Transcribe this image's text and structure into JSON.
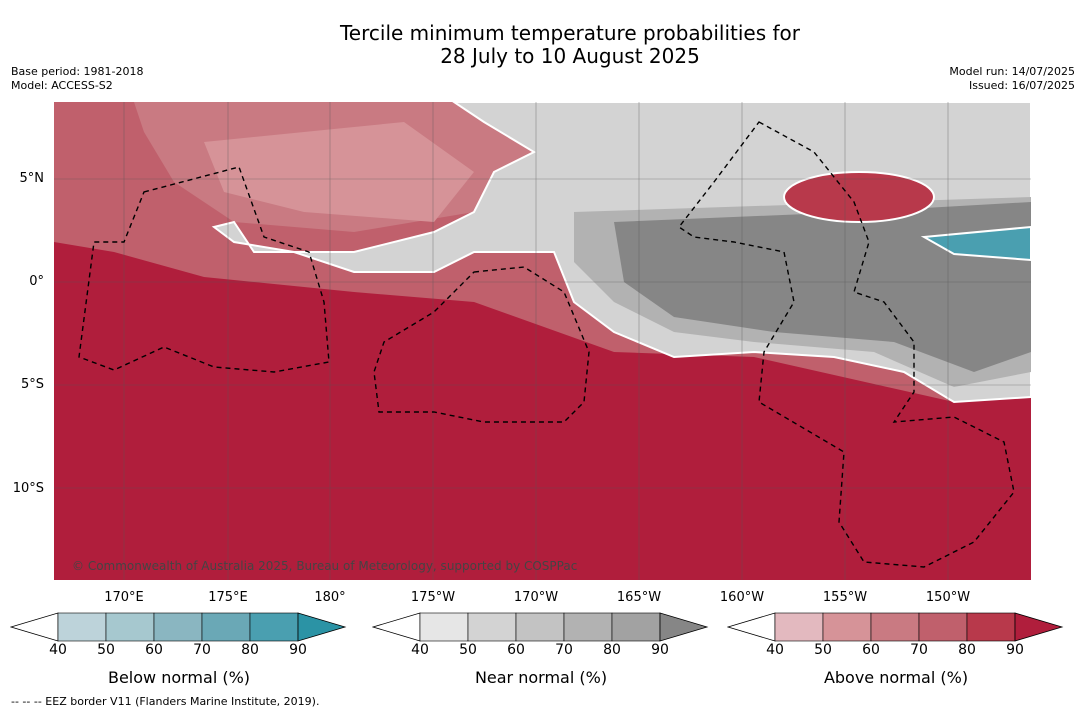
{
  "title_line1": "Tercile minimum temperature probabilities for",
  "title_line2": "28 July to 10 August 2025",
  "base_period": "Base period: 1981-2018",
  "model": "Model: ACCESS-S2",
  "model_run": "Model run: 14/07/2025",
  "issued": "Issued: 16/07/2025",
  "lat_labels": [
    "5°N",
    "0°",
    "5°S",
    "10°S"
  ],
  "lon_labels": [
    "170°E",
    "175°E",
    "180°",
    "175°W",
    "170°W",
    "165°W",
    "160°W",
    "155°W",
    "150°W"
  ],
  "copyright": "© Commonwealth of Australia 2025, Bureau of Meteorology, supported by COSPPac",
  "colorbars": [
    {
      "title": "Below normal (%)",
      "ticks": [
        "40",
        "50",
        "60",
        "70",
        "80",
        "90"
      ],
      "colors": [
        "#ffffff",
        "#bdd3da",
        "#a6c8cf",
        "#8ab6c1",
        "#6aa8b6",
        "#4a9fb0",
        "#2b93a5"
      ]
    },
    {
      "title": "Near normal (%)",
      "ticks": [
        "40",
        "50",
        "60",
        "70",
        "80",
        "90"
      ],
      "colors": [
        "#ffffff",
        "#e6e6e6",
        "#d3d3d3",
        "#c3c3c3",
        "#b2b2b2",
        "#a2a2a2",
        "#868686"
      ]
    },
    {
      "title": "Above normal (%)",
      "ticks": [
        "40",
        "50",
        "60",
        "70",
        "80",
        "90"
      ],
      "colors": [
        "#ffffff",
        "#e3b9bf",
        "#d69398",
        "#c97a82",
        "#c0606c",
        "#b8394b",
        "#b01e3c"
      ]
    }
  ],
  "eez_note": "--  --  -- EEZ border V11 (Flanders Marine Institute, 2019)."
}
